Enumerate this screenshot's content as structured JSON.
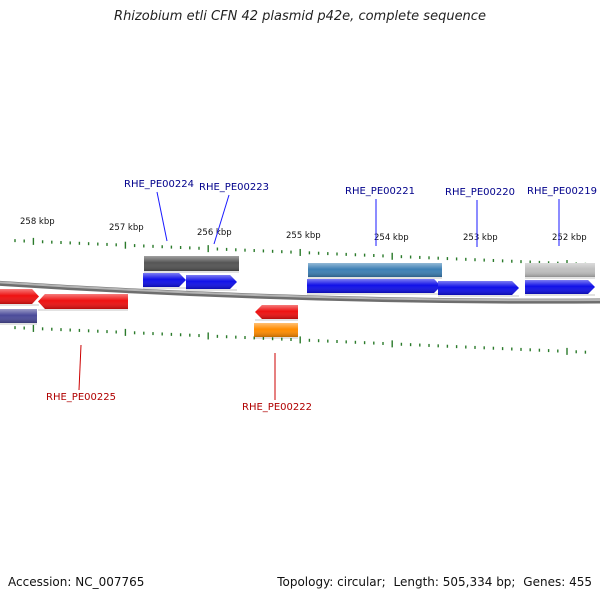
{
  "title": "Rhizobium etli CFN 42 plasmid p42e, complete sequence",
  "footer": {
    "accession_label": "Accession:",
    "accession": "NC_007765",
    "topology_label": "Topology:",
    "topology": "circular",
    "length_label": "Length:",
    "length": "505,334 bp",
    "genes_label": "Genes:",
    "genes": "455"
  },
  "colors": {
    "backbone": "#8a8a8a",
    "tick": "#2a7a2a",
    "label_forward": "#00008b",
    "label_reverse": "#b00000",
    "leader_forward": "#1a1aff",
    "leader_reverse": "#cc0000"
  },
  "scale": {
    "unit": "kbp",
    "major_ticks_kbp": [
      258,
      257,
      256,
      255,
      254,
      253,
      252
    ],
    "minor_per_major": 10
  },
  "genes": [
    {
      "label": "RHE_PE00224",
      "strand": "+",
      "color": "#1010e8"
    },
    {
      "label": "RHE_PE00223",
      "strand": "+",
      "color": "#1010e8"
    },
    {
      "label": "RHE_PE00221",
      "strand": "+",
      "color": "#1010e8"
    },
    {
      "label": "RHE_PE00220",
      "strand": "+",
      "color": "#1010e8"
    },
    {
      "label": "RHE_PE00219",
      "strand": "+",
      "color": "#1010e8"
    },
    {
      "label": "RHE_PE00225",
      "strand": "-",
      "color": "#ee1111"
    },
    {
      "label": "RHE_PE00222",
      "strand": "-",
      "color": "#ee1111"
    }
  ],
  "features": [
    {
      "name": "cog-bar-left",
      "color": "#555555"
    },
    {
      "name": "cog-bar-mid",
      "color": "#3c7fb4"
    },
    {
      "name": "cog-bar-right",
      "color": "#bfbfbf"
    },
    {
      "name": "cog-bar-reverse",
      "color": "#ff8c00"
    },
    {
      "name": "cog-bar-reverse-left",
      "color": "#4b4b9a"
    }
  ]
}
